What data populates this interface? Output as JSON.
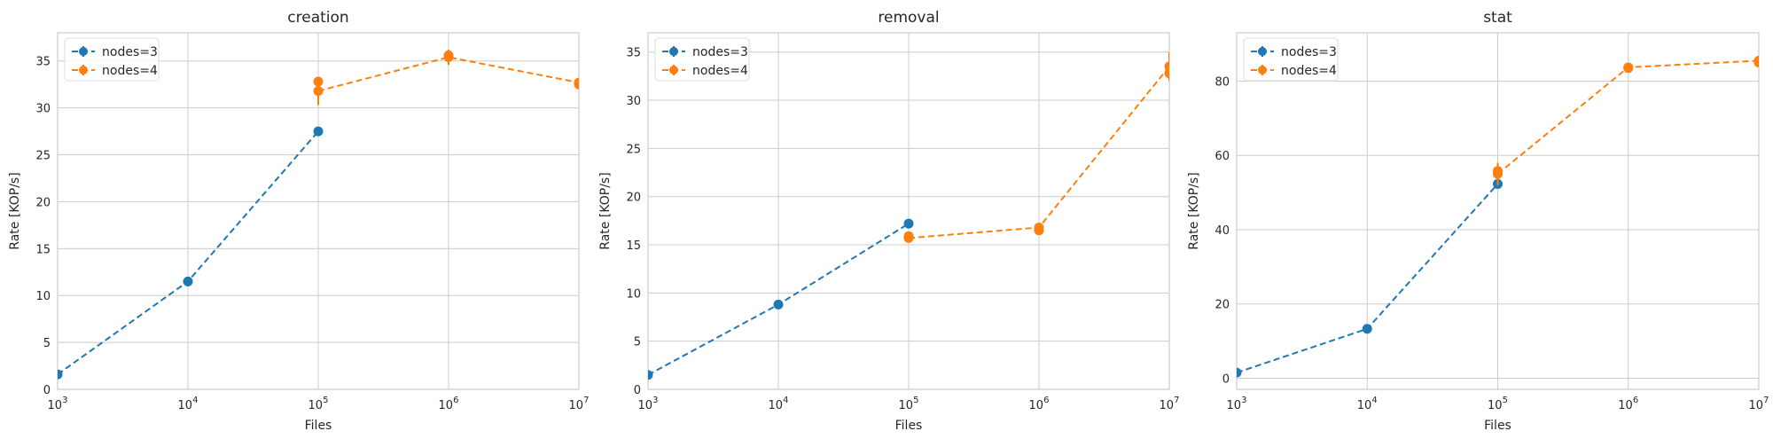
{
  "chart_data": [
    {
      "type": "line",
      "title": "creation",
      "xlabel": "Files",
      "ylabel": "Rate [KOP/s]",
      "xscale": "log",
      "xlim": [
        1000,
        10000000
      ],
      "ylim": [
        0,
        38
      ],
      "x_ticks": [
        1000,
        10000,
        100000,
        1000000,
        10000000
      ],
      "y_ticks": [
        0,
        5,
        10,
        15,
        20,
        25,
        30,
        35
      ],
      "y_tick_labels": [
        "0",
        "5",
        "10",
        "15",
        "20",
        "25",
        "30",
        "35"
      ],
      "grid": true,
      "legend": "top-left",
      "series": [
        {
          "name": "nodes=3",
          "color": "#1f77b4",
          "linestyle": "dashed",
          "marker": "circle",
          "points": [
            [
              1000,
              1.6,
              0.2
            ],
            [
              10000,
              11.5,
              0.5
            ],
            [
              100000,
              27.5,
              0.4
            ]
          ]
        },
        {
          "name": "nodes=4",
          "color": "#ff7f0e",
          "linestyle": "dashed",
          "marker": "circle",
          "points": [
            [
              100000,
              31.8,
              1.5
            ],
            [
              1000000,
              35.4,
              0.8
            ],
            [
              10000000,
              32.7,
              0.3
            ]
          ],
          "extra_points": [
            [
              100000,
              32.8
            ],
            [
              1000000,
              35.6
            ],
            [
              10000000,
              32.5
            ]
          ]
        }
      ]
    },
    {
      "type": "line",
      "title": "removal",
      "xlabel": "Files",
      "ylabel": "Rate [KOP/s]",
      "xscale": "log",
      "xlim": [
        1000,
        10000000
      ],
      "ylim": [
        0,
        37
      ],
      "x_ticks": [
        1000,
        10000,
        100000,
        1000000,
        10000000
      ],
      "y_ticks": [
        0,
        5,
        10,
        15,
        20,
        25,
        30,
        35
      ],
      "y_tick_labels": [
        "0",
        "5",
        "10",
        "15",
        "20",
        "25",
        "30",
        "35"
      ],
      "grid": true,
      "legend": "top-left",
      "series": [
        {
          "name": "nodes=3",
          "color": "#1f77b4",
          "linestyle": "dashed",
          "marker": "circle",
          "points": [
            [
              1000,
              1.5,
              0.1
            ],
            [
              10000,
              8.8,
              0.2
            ],
            [
              100000,
              17.2,
              0.2
            ]
          ]
        },
        {
          "name": "nodes=4",
          "color": "#ff7f0e",
          "linestyle": "dashed",
          "marker": "circle",
          "points": [
            [
              100000,
              15.7,
              0.3
            ],
            [
              1000000,
              16.8,
              0.4
            ],
            [
              10000000,
              33.5,
              1.5
            ]
          ],
          "extra_points": [
            [
              100000,
              15.9
            ],
            [
              1000000,
              16.5
            ],
            [
              10000000,
              32.8
            ]
          ]
        }
      ]
    },
    {
      "type": "line",
      "title": "stat",
      "xlabel": "Files",
      "ylabel": "Rate [KOP/s]",
      "xscale": "log",
      "xlim": [
        1000,
        10000000
      ],
      "ylim": [
        -3,
        93
      ],
      "x_ticks": [
        1000,
        10000,
        100000,
        1000000,
        10000000
      ],
      "y_ticks": [
        0,
        20,
        40,
        60,
        80
      ],
      "y_tick_labels": [
        "0",
        "20",
        "40",
        "60",
        "80"
      ],
      "grid": true,
      "legend": "top-left",
      "series": [
        {
          "name": "nodes=3",
          "color": "#1f77b4",
          "linestyle": "dashed",
          "marker": "circle",
          "points": [
            [
              1000,
              1.5,
              0.3
            ],
            [
              10000,
              13.3,
              0.4
            ],
            [
              100000,
              52.3,
              0.8
            ]
          ]
        },
        {
          "name": "nodes=4",
          "color": "#ff7f0e",
          "linestyle": "dashed",
          "marker": "circle",
          "points": [
            [
              100000,
              55.0,
              3.0
            ],
            [
              1000000,
              83.7,
              0.8
            ],
            [
              10000000,
              85.5,
              0.8
            ]
          ],
          "extra_points": [
            [
              100000,
              55.8
            ],
            [
              1000000,
              83.5
            ],
            [
              10000000,
              85.0
            ]
          ]
        }
      ]
    }
  ]
}
